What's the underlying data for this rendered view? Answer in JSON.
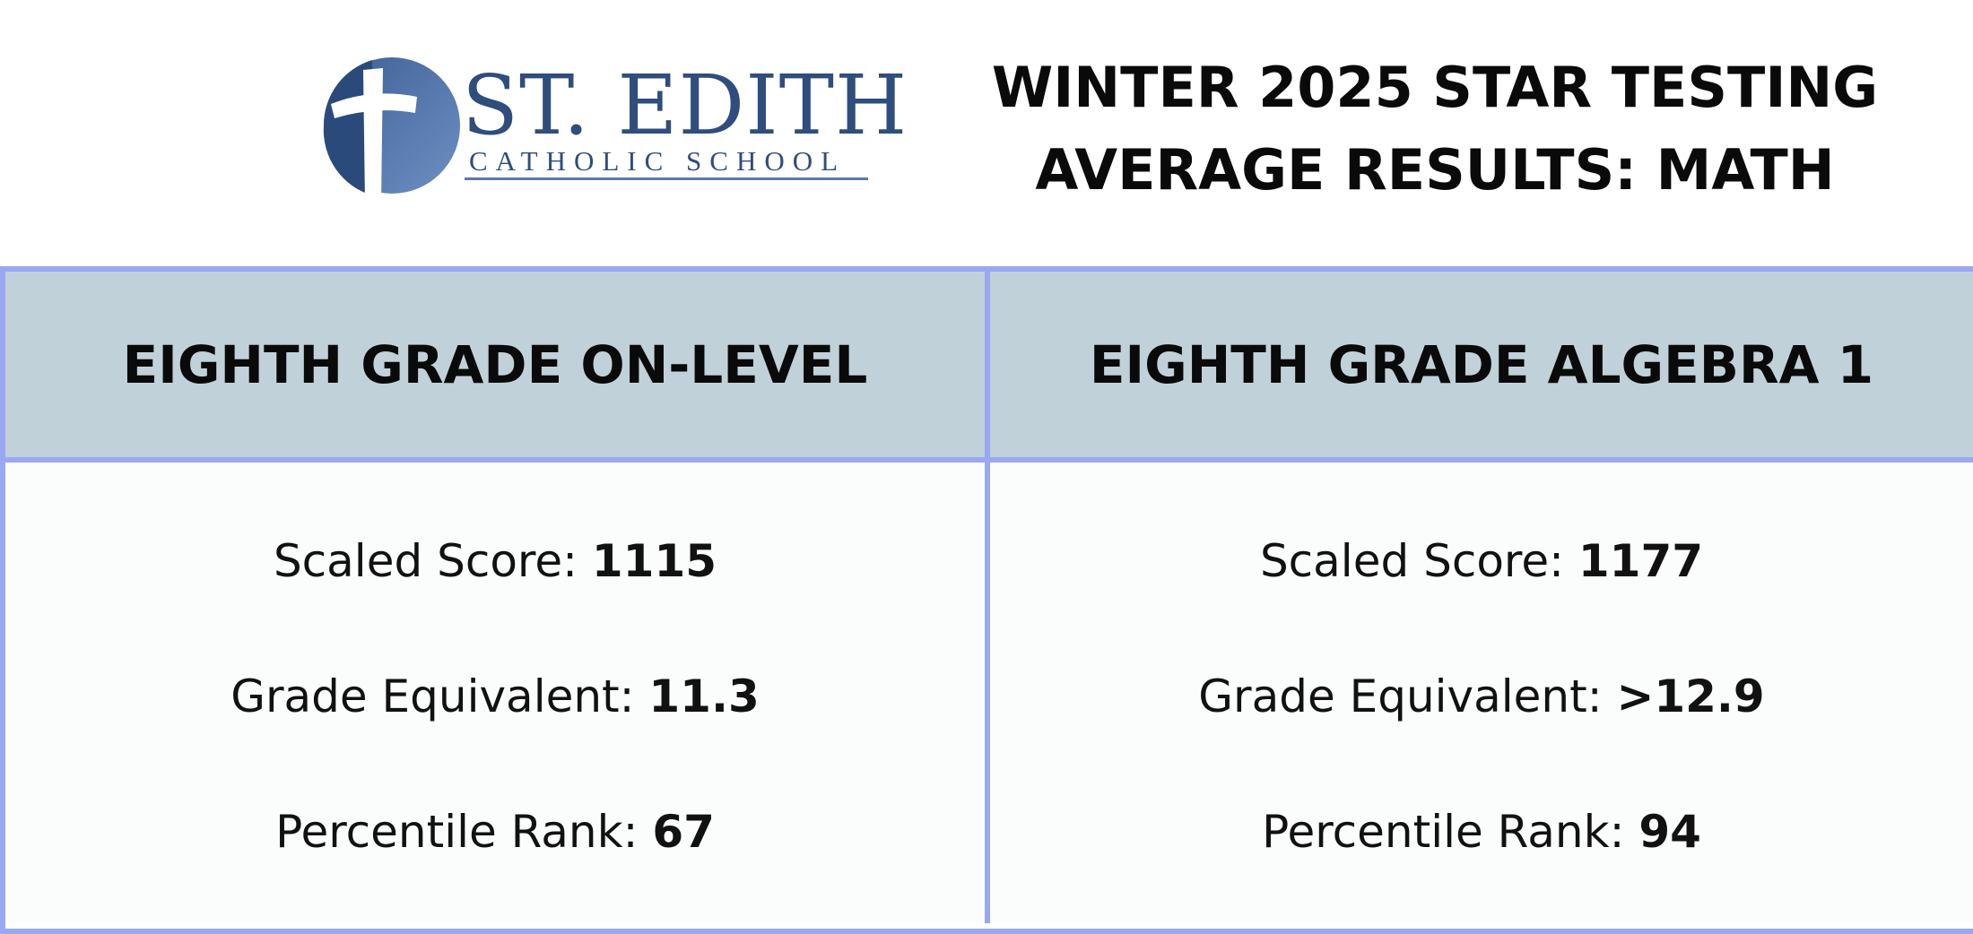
{
  "logo": {
    "name": "ST. EDITH",
    "subtitle": "CATHOLIC SCHOOL"
  },
  "title": {
    "line1": "WINTER 2025 STAR TESTING",
    "line2": "AVERAGE RESULTS: MATH"
  },
  "colors": {
    "brand_blue": "#2f4d7d",
    "border": "#9aa7f2",
    "header_bg": "#c1d1d9"
  },
  "columns": [
    {
      "heading": "EIGHTH GRADE ON-LEVEL",
      "stats": [
        {
          "label": "Scaled Score: ",
          "value": "1115"
        },
        {
          "label": "Grade Equivalent: ",
          "value": "11.3"
        },
        {
          "label": "Percentile Rank: ",
          "value": "67"
        }
      ]
    },
    {
      "heading": "EIGHTH GRADE ALGEBRA 1",
      "stats": [
        {
          "label": "Scaled Score: ",
          "value": "1177"
        },
        {
          "label": "Grade Equivalent: ",
          "value": ">12.9"
        },
        {
          "label": "Percentile Rank: ",
          "value": "94"
        }
      ]
    }
  ]
}
